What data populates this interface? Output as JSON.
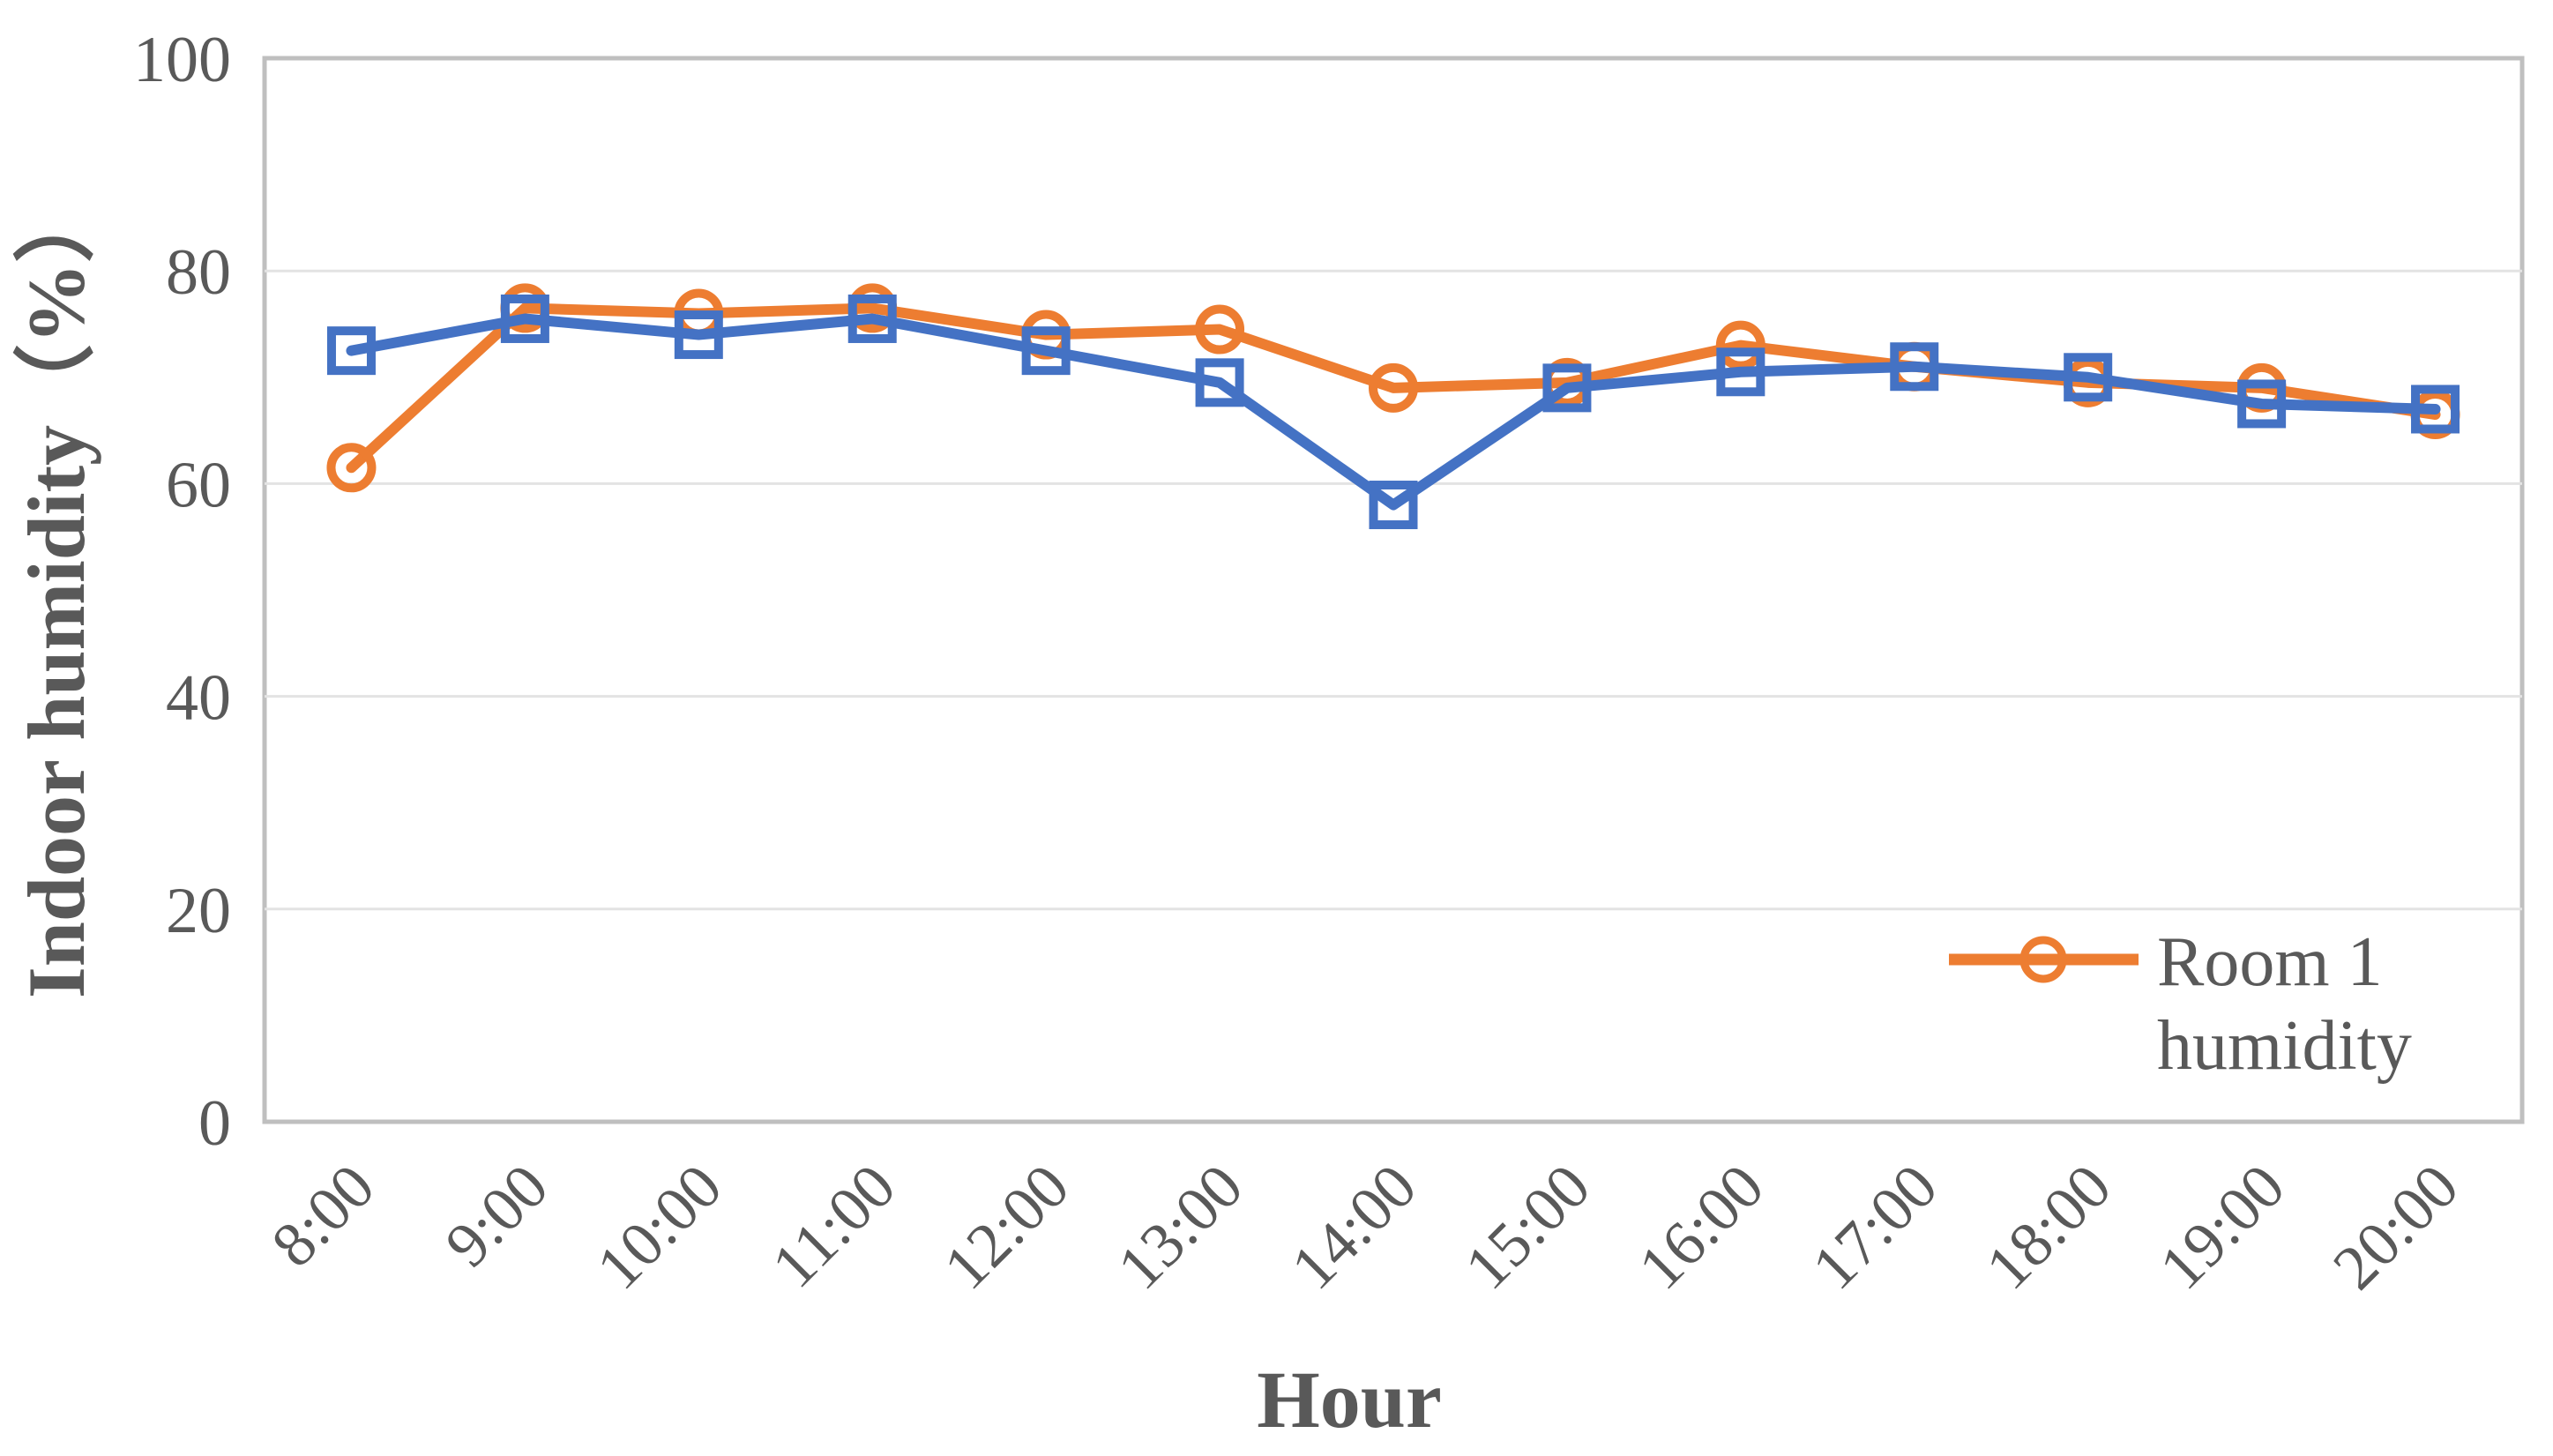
{
  "chart_data": {
    "type": "line",
    "categories": [
      "8:00",
      "9:00",
      "10:00",
      "11:00",
      "12:00",
      "13:00",
      "14:00",
      "15:00",
      "16:00",
      "17:00",
      "18:00",
      "19:00",
      "20:00"
    ],
    "series": [
      {
        "name": "Room 1 humidity",
        "in_legend": true,
        "color": "#ED7D31",
        "marker": "circle",
        "values": [
          61.5,
          76.5,
          76,
          76.5,
          74,
          74.5,
          69,
          69.5,
          73,
          71,
          69.5,
          69,
          66.5
        ]
      },
      {
        "name": "",
        "in_legend": false,
        "color": "#4472C4",
        "marker": "square",
        "values": [
          72.5,
          75.5,
          74,
          75.5,
          72.5,
          69.5,
          58,
          69,
          70.5,
          71,
          70,
          67.5,
          67
        ]
      }
    ],
    "xlabel": "Hour",
    "ylabel": "Indoor humidity（%）",
    "ylim": [
      0,
      100
    ],
    "yticks": [
      0,
      20,
      40,
      60,
      80,
      100
    ],
    "grid": "horizontal",
    "legend_position": "inside-bottom-right",
    "legend_lines": [
      "Room 1",
      "humidity"
    ]
  },
  "chart_style": {
    "axis_text_color": "#595959",
    "gridline_color": "#E3E3E3",
    "plot_border_color": "#BFBFBF",
    "background_color": "#FFFFFF"
  }
}
